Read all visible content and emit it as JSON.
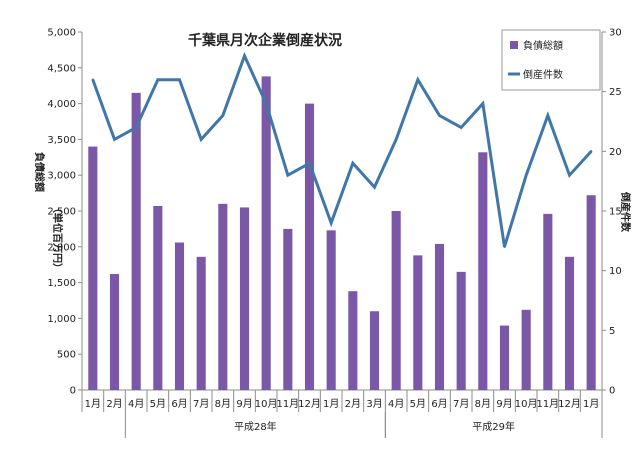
{
  "chart_data": {
    "type": "bar",
    "title": "千葉県月次企業倒産状況",
    "categories": [
      "1月",
      "2月",
      "4月",
      "5月",
      "6月",
      "7月",
      "8月",
      "9月",
      "10月",
      "11月",
      "12月",
      "1月",
      "2月",
      "3月",
      "4月",
      "5月",
      "6月",
      "7月",
      "8月",
      "9月",
      "10月",
      "11月",
      "12月",
      "1月"
    ],
    "groups": [
      {
        "label": "平成28年",
        "start": 2,
        "end": 13
      },
      {
        "label": "平成29年",
        "start": 14,
        "end": 23
      }
    ],
    "series": [
      {
        "name": "負債総額",
        "type": "bar",
        "axis": "left",
        "color": "#7B57A8",
        "values": [
          3400,
          1620,
          4150,
          2570,
          2060,
          1860,
          2600,
          2550,
          4380,
          2250,
          4000,
          2230,
          1380,
          1100,
          2500,
          1880,
          2040,
          1650,
          3320,
          900,
          1120,
          2460,
          1860,
          2720
        ]
      },
      {
        "name": "倒産件数",
        "type": "line",
        "axis": "right",
        "color": "#4177A8",
        "values": [
          26,
          21,
          22,
          26,
          26,
          21,
          23,
          28,
          24,
          18,
          19,
          14,
          19,
          17,
          21,
          26,
          23,
          22,
          24,
          12,
          18,
          23,
          18,
          20
        ]
      }
    ],
    "y_left": {
      "label": "負債総額（単位百万円）",
      "label_line1": "負債総額",
      "label_line2": "（単位百万円）",
      "range": [
        0,
        5000
      ],
      "ticks": [
        "0",
        "500",
        "1,000",
        "1,500",
        "2,000",
        "2,500",
        "3,000",
        "3,500",
        "4,000",
        "4,500",
        "5,000"
      ]
    },
    "y_right": {
      "label": "倒産件数",
      "range": [
        0,
        30
      ],
      "ticks": [
        "0",
        "5",
        "10",
        "15",
        "20",
        "25",
        "30"
      ]
    },
    "grid": false,
    "legend_position": "top-right"
  }
}
